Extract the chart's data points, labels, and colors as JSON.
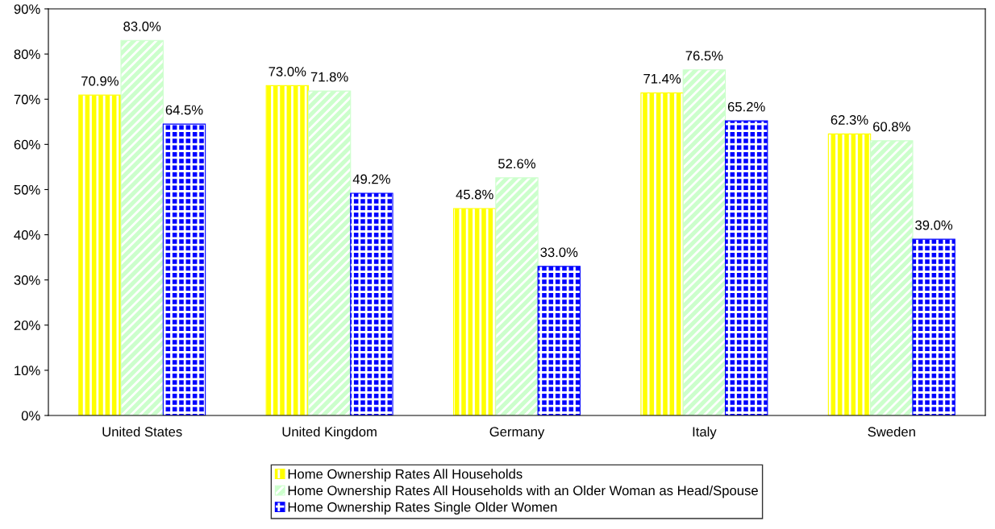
{
  "chart_data": {
    "type": "bar",
    "categories": [
      "United States",
      "United Kingdom",
      "Germany",
      "Italy",
      "Sweden"
    ],
    "series": [
      {
        "name": "Home Ownership Rates All Households",
        "color": "#ffff00",
        "values": [
          70.9,
          73.0,
          45.8,
          71.4,
          62.3
        ],
        "value_labels": [
          "70.9%",
          "73.0%",
          "45.8%",
          "71.4%",
          "62.3%"
        ]
      },
      {
        "name": "Home Ownership Rates All Households with an Older Woman as Head/Spouse",
        "color": "#ccffcc",
        "values": [
          83.0,
          71.8,
          52.6,
          76.5,
          60.8
        ],
        "value_labels": [
          "83.0%",
          "71.8%",
          "52.6%",
          "76.5%",
          "60.8%"
        ]
      },
      {
        "name": "Home Ownership Rates Single Older Women",
        "color": "#0000ff",
        "values": [
          64.5,
          49.2,
          33.0,
          65.2,
          39.0
        ],
        "value_labels": [
          "64.5%",
          "49.2%",
          "33.0%",
          "65.2%",
          "39.0%"
        ]
      }
    ],
    "ylim": [
      0,
      90
    ],
    "yticks": [
      {
        "value": 0,
        "label": "0%"
      },
      {
        "value": 10,
        "label": "10%"
      },
      {
        "value": 20,
        "label": "20%"
      },
      {
        "value": 30,
        "label": "30%"
      },
      {
        "value": 40,
        "label": "40%"
      },
      {
        "value": 50,
        "label": "50%"
      },
      {
        "value": 60,
        "label": "60%"
      },
      {
        "value": 70,
        "label": "70%"
      },
      {
        "value": 80,
        "label": "80%"
      },
      {
        "value": 90,
        "label": "90%"
      }
    ],
    "grid": false,
    "legend": "bottom"
  }
}
